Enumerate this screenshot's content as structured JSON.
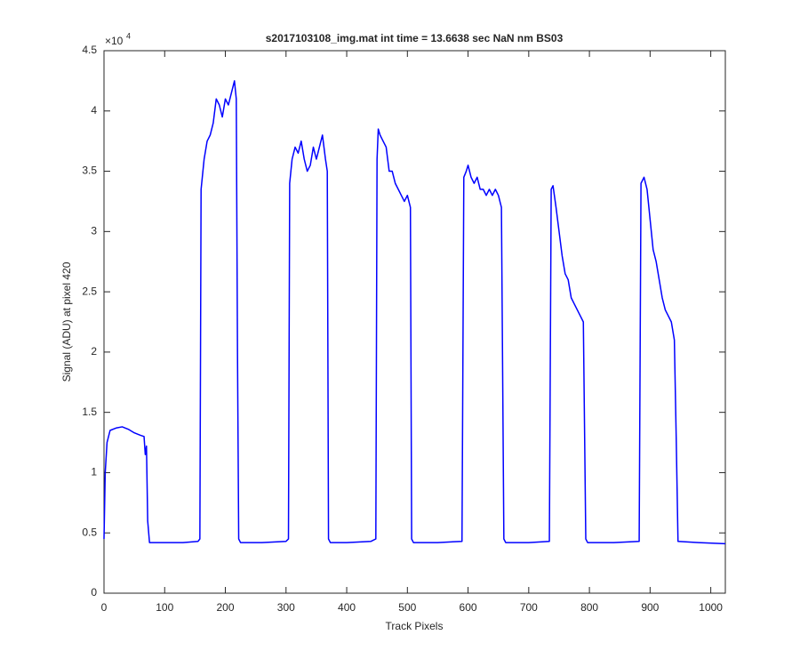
{
  "chart_data": {
    "type": "line",
    "title": "s2017103108_img.mat int time = 13.6638 sec  NaN nm BS03",
    "x_label": "Track Pixels",
    "y_label": "Signal (ADU) at pixel 420",
    "y_scale_label": {
      "base": "×10",
      "exponent": "4"
    },
    "x": [
      0,
      2,
      5,
      10,
      20,
      30,
      40,
      50,
      60,
      66,
      68,
      70,
      72,
      75,
      100,
      130,
      155,
      158,
      160,
      165,
      170,
      175,
      180,
      185,
      190,
      195,
      200,
      205,
      210,
      215,
      218,
      220,
      222,
      225,
      260,
      300,
      304,
      306,
      310,
      315,
      320,
      325,
      330,
      335,
      340,
      345,
      350,
      355,
      360,
      365,
      368,
      370,
      373,
      400,
      440,
      448,
      450,
      452,
      455,
      460,
      465,
      470,
      475,
      480,
      485,
      490,
      495,
      500,
      505,
      507,
      510,
      550,
      590,
      593,
      597,
      600,
      605,
      610,
      615,
      620,
      625,
      630,
      635,
      640,
      645,
      650,
      655,
      659,
      662,
      700,
      734,
      737,
      740,
      745,
      750,
      755,
      760,
      765,
      770,
      775,
      780,
      785,
      790,
      794,
      797,
      840,
      882,
      885,
      890,
      895,
      900,
      905,
      910,
      915,
      920,
      925,
      930,
      935,
      940,
      943,
      946,
      980,
      1024
    ],
    "series": [
      {
        "color": "#0000ff",
        "values": [
          0.45,
          1.0,
          1.25,
          1.35,
          1.37,
          1.38,
          1.36,
          1.33,
          1.31,
          1.3,
          1.15,
          1.22,
          0.6,
          0.42,
          0.42,
          0.42,
          0.43,
          0.45,
          3.35,
          3.6,
          3.75,
          3.8,
          3.9,
          4.1,
          4.05,
          3.95,
          4.1,
          4.05,
          4.15,
          4.25,
          4.1,
          2.0,
          0.45,
          0.42,
          0.42,
          0.43,
          0.45,
          3.4,
          3.6,
          3.7,
          3.65,
          3.75,
          3.6,
          3.5,
          3.55,
          3.7,
          3.6,
          3.7,
          3.8,
          3.6,
          3.5,
          0.45,
          0.42,
          0.42,
          0.43,
          0.45,
          3.6,
          3.85,
          3.8,
          3.75,
          3.7,
          3.5,
          3.5,
          3.4,
          3.35,
          3.3,
          3.25,
          3.3,
          3.2,
          0.45,
          0.42,
          0.42,
          0.43,
          3.45,
          3.5,
          3.55,
          3.45,
          3.4,
          3.45,
          3.35,
          3.35,
          3.3,
          3.35,
          3.3,
          3.35,
          3.3,
          3.2,
          0.45,
          0.42,
          0.42,
          0.43,
          3.35,
          3.38,
          3.2,
          3.0,
          2.8,
          2.65,
          2.6,
          2.45,
          2.4,
          2.35,
          2.3,
          2.25,
          0.45,
          0.42,
          0.42,
          0.43,
          3.4,
          3.45,
          3.35,
          3.1,
          2.85,
          2.75,
          2.6,
          2.45,
          2.35,
          2.3,
          2.25,
          2.1,
          1.3,
          0.43,
          0.42,
          0.41
        ]
      }
    ],
    "xlim": [
      0,
      1024
    ],
    "xticks": [
      0,
      100,
      200,
      300,
      400,
      500,
      600,
      700,
      800,
      900,
      1000
    ],
    "ylim": [
      0,
      4.5
    ],
    "yticks": [
      0,
      0.5,
      1,
      1.5,
      2,
      2.5,
      3,
      3.5,
      4,
      4.5
    ],
    "grid": false
  }
}
